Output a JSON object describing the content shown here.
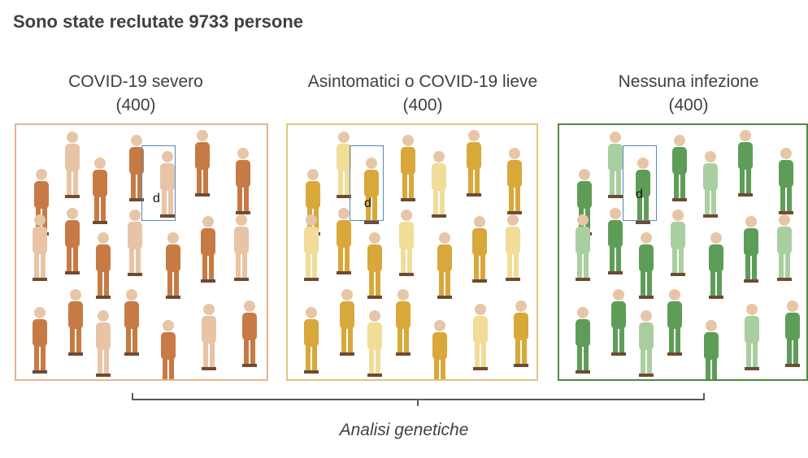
{
  "title": "Sono state reclutate 9733 persone",
  "groups": [
    {
      "label": "COVID-19 severo",
      "count": "(400)",
      "color": "#c87a44",
      "light": "#e8c4a6",
      "border": "#e8b48c"
    },
    {
      "label": "Asintomatici o COVID-19 lieve",
      "count": "(400)",
      "color": "#d8a83a",
      "light": "#f1dc98",
      "border": "#e2c483"
    },
    {
      "label": "Nessuna infezione",
      "count": "(400)",
      "color": "#5e9d58",
      "light": "#a9cfa0",
      "border": "#4f8a3f"
    }
  ],
  "highlight_letter": "d",
  "footer": "Analisi genetiche",
  "icons": {
    "person": "person-figure-icon"
  }
}
